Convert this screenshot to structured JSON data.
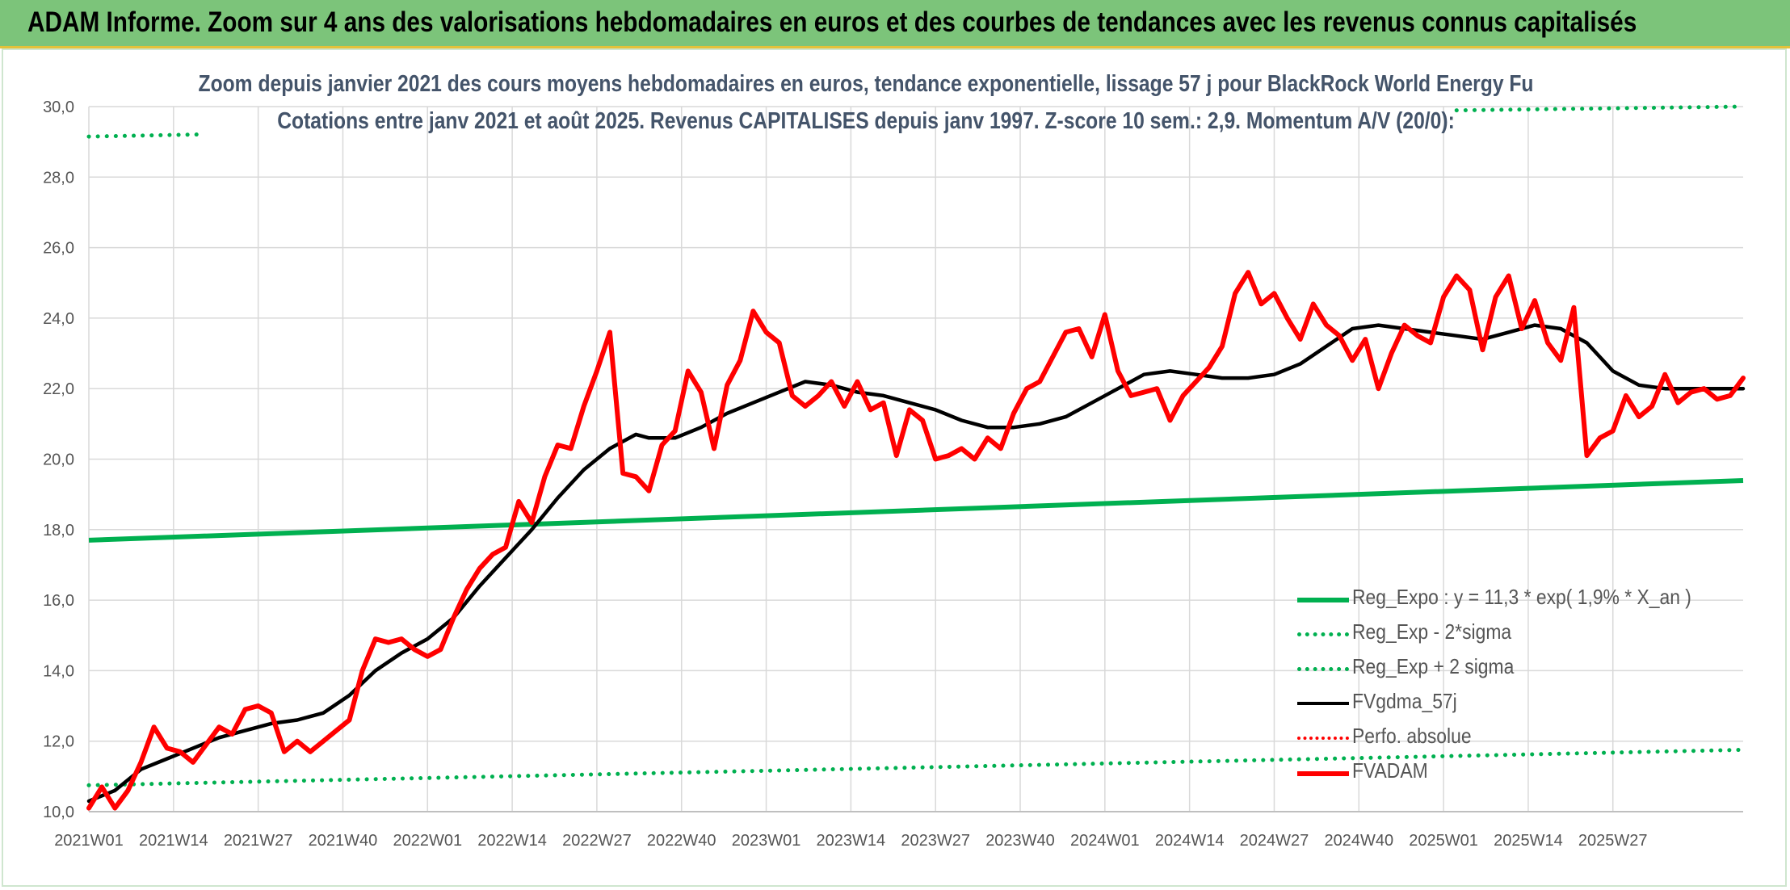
{
  "header": {
    "title": "ADAM Informe. Zoom sur 4 ans des valorisations hebdomadaires en euros et des courbes de tendances avec les revenus connus capitalisés"
  },
  "chart_data": {
    "type": "line",
    "title": "Zoom depuis janvier 2021 des cours moyens hebdomadaires en euros, tendance exponentielle, lissage 57 j pour BlackRock World Energy Fu",
    "subtitle": "Cotations entre janv 2021 et août 2025. Revenus CAPITALISES depuis janv 1997. Z-score 10 sem.: 2,9. Momentum A/V (20/0):",
    "xlabel": "",
    "ylabel": "",
    "ylim": [
      10,
      30
    ],
    "yticks": [
      "10,0",
      "12,0",
      "14,0",
      "16,0",
      "18,0",
      "20,0",
      "22,0",
      "24,0",
      "26,0",
      "28,0",
      "30,0"
    ],
    "xticks": [
      "2021W01",
      "2021W14",
      "2021W27",
      "2021W40",
      "2022W01",
      "2022W14",
      "2022W27",
      "2022W40",
      "2023W01",
      "2023W14",
      "2023W27",
      "2023W40",
      "2024W01",
      "2024W14",
      "2024W27",
      "2024W40",
      "2025W01",
      "2025W14",
      "2025W27"
    ],
    "xrange_weeks": [
      0,
      240
    ],
    "grid": true,
    "legend_position": "bottom-right",
    "series": [
      {
        "name": "Reg_Expo : y = 11,3 * exp( 1,9% *  X_an )",
        "color": "#00b050",
        "style": "solid",
        "points": [
          [
            0,
            17.7
          ],
          [
            240,
            19.3
          ]
        ]
      },
      {
        "name": "Reg_Exp - 2*sigma",
        "color": "#00b050",
        "style": "dotted",
        "points": [
          [
            0,
            10.75
          ],
          [
            240,
            11.7
          ]
        ]
      },
      {
        "name": "Reg_Exp + 2 sigma",
        "color": "#00b050",
        "style": "dotted",
        "points": [
          [
            0,
            29.15
          ],
          [
            240,
            30.0
          ]
        ]
      },
      {
        "name": "FVgdma_57j",
        "color": "#000000",
        "style": "solid",
        "points": [
          [
            0,
            10.3
          ],
          [
            4,
            10.6
          ],
          [
            8,
            11.2
          ],
          [
            12,
            11.5
          ],
          [
            16,
            11.8
          ],
          [
            20,
            12.1
          ],
          [
            24,
            12.3
          ],
          [
            28,
            12.5
          ],
          [
            32,
            12.6
          ],
          [
            36,
            12.8
          ],
          [
            40,
            13.3
          ],
          [
            44,
            14.0
          ],
          [
            48,
            14.5
          ],
          [
            52,
            14.9
          ],
          [
            56,
            15.5
          ],
          [
            60,
            16.4
          ],
          [
            64,
            17.2
          ],
          [
            68,
            18.0
          ],
          [
            72,
            18.9
          ],
          [
            76,
            19.7
          ],
          [
            80,
            20.3
          ],
          [
            84,
            20.7
          ],
          [
            86,
            20.6
          ],
          [
            90,
            20.6
          ],
          [
            94,
            20.9
          ],
          [
            98,
            21.3
          ],
          [
            102,
            21.6
          ],
          [
            106,
            21.9
          ],
          [
            110,
            22.2
          ],
          [
            114,
            22.1
          ],
          [
            118,
            21.9
          ],
          [
            122,
            21.8
          ],
          [
            126,
            21.6
          ],
          [
            130,
            21.4
          ],
          [
            134,
            21.1
          ],
          [
            138,
            20.9
          ],
          [
            142,
            20.9
          ],
          [
            146,
            21.0
          ],
          [
            150,
            21.2
          ],
          [
            154,
            21.6
          ],
          [
            158,
            22.0
          ],
          [
            162,
            22.4
          ],
          [
            166,
            22.5
          ],
          [
            170,
            22.4
          ],
          [
            174,
            22.3
          ],
          [
            178,
            22.3
          ],
          [
            182,
            22.4
          ],
          [
            186,
            22.7
          ],
          [
            190,
            23.2
          ],
          [
            194,
            23.7
          ],
          [
            198,
            23.8
          ],
          [
            202,
            23.7
          ],
          [
            206,
            23.6
          ],
          [
            210,
            23.5
          ],
          [
            214,
            23.4
          ],
          [
            218,
            23.6
          ],
          [
            222,
            23.8
          ],
          [
            226,
            23.7
          ],
          [
            230,
            23.3
          ],
          [
            234,
            22.5
          ],
          [
            238,
            22.1
          ],
          [
            242,
            22.0
          ],
          [
            246,
            22.0
          ],
          [
            250,
            22.0
          ],
          [
            254,
            22.0
          ]
        ]
      },
      {
        "name": "Perfo. absolue",
        "color": "#ff0000",
        "style": "dotted",
        "points": []
      },
      {
        "name": "FVADAM",
        "color": "#ff0000",
        "style": "solid",
        "points": [
          [
            0,
            10.1
          ],
          [
            2,
            10.7
          ],
          [
            4,
            10.1
          ],
          [
            6,
            10.6
          ],
          [
            8,
            11.4
          ],
          [
            10,
            12.4
          ],
          [
            12,
            11.8
          ],
          [
            14,
            11.7
          ],
          [
            16,
            11.4
          ],
          [
            18,
            11.9
          ],
          [
            20,
            12.4
          ],
          [
            22,
            12.2
          ],
          [
            24,
            12.9
          ],
          [
            26,
            13.0
          ],
          [
            28,
            12.8
          ],
          [
            30,
            11.7
          ],
          [
            32,
            12.0
          ],
          [
            34,
            11.7
          ],
          [
            36,
            12.0
          ],
          [
            38,
            12.3
          ],
          [
            40,
            12.6
          ],
          [
            42,
            14.0
          ],
          [
            44,
            14.9
          ],
          [
            46,
            14.8
          ],
          [
            48,
            14.9
          ],
          [
            50,
            14.6
          ],
          [
            52,
            14.4
          ],
          [
            54,
            14.6
          ],
          [
            56,
            15.5
          ],
          [
            58,
            16.3
          ],
          [
            60,
            16.9
          ],
          [
            62,
            17.3
          ],
          [
            64,
            17.5
          ],
          [
            66,
            18.8
          ],
          [
            68,
            18.2
          ],
          [
            70,
            19.5
          ],
          [
            72,
            20.4
          ],
          [
            74,
            20.3
          ],
          [
            76,
            21.5
          ],
          [
            78,
            22.5
          ],
          [
            80,
            23.6
          ],
          [
            82,
            19.6
          ],
          [
            84,
            19.5
          ],
          [
            86,
            19.1
          ],
          [
            88,
            20.4
          ],
          [
            90,
            20.8
          ],
          [
            92,
            22.5
          ],
          [
            94,
            21.9
          ],
          [
            96,
            20.3
          ],
          [
            98,
            22.1
          ],
          [
            100,
            22.8
          ],
          [
            102,
            24.2
          ],
          [
            104,
            23.6
          ],
          [
            106,
            23.3
          ],
          [
            108,
            21.8
          ],
          [
            110,
            21.5
          ],
          [
            112,
            21.8
          ],
          [
            114,
            22.2
          ],
          [
            116,
            21.5
          ],
          [
            118,
            22.2
          ],
          [
            120,
            21.4
          ],
          [
            122,
            21.6
          ],
          [
            124,
            20.1
          ],
          [
            126,
            21.4
          ],
          [
            128,
            21.1
          ],
          [
            130,
            20.0
          ],
          [
            132,
            20.1
          ],
          [
            134,
            20.3
          ],
          [
            136,
            20.0
          ],
          [
            138,
            20.6
          ],
          [
            140,
            20.3
          ],
          [
            142,
            21.3
          ],
          [
            144,
            22.0
          ],
          [
            146,
            22.2
          ],
          [
            148,
            22.9
          ],
          [
            150,
            23.6
          ],
          [
            152,
            23.7
          ],
          [
            154,
            22.9
          ],
          [
            156,
            24.1
          ],
          [
            158,
            22.5
          ],
          [
            160,
            21.8
          ],
          [
            162,
            21.9
          ],
          [
            164,
            22.0
          ],
          [
            166,
            21.1
          ],
          [
            168,
            21.8
          ],
          [
            170,
            22.2
          ],
          [
            172,
            22.6
          ],
          [
            174,
            23.2
          ],
          [
            176,
            24.7
          ],
          [
            178,
            25.3
          ],
          [
            180,
            24.4
          ],
          [
            182,
            24.7
          ],
          [
            184,
            24.0
          ],
          [
            186,
            23.4
          ],
          [
            188,
            24.4
          ],
          [
            190,
            23.8
          ],
          [
            192,
            23.5
          ],
          [
            194,
            22.8
          ],
          [
            196,
            23.4
          ],
          [
            198,
            22.0
          ],
          [
            200,
            23.0
          ],
          [
            202,
            23.8
          ],
          [
            204,
            23.5
          ],
          [
            206,
            23.3
          ],
          [
            208,
            24.6
          ],
          [
            210,
            25.2
          ],
          [
            212,
            24.8
          ],
          [
            214,
            23.1
          ],
          [
            216,
            24.6
          ],
          [
            218,
            25.2
          ],
          [
            220,
            23.7
          ],
          [
            222,
            24.5
          ],
          [
            224,
            23.3
          ],
          [
            226,
            22.8
          ],
          [
            228,
            24.3
          ],
          [
            230,
            20.1
          ],
          [
            232,
            20.6
          ],
          [
            234,
            20.8
          ],
          [
            236,
            21.8
          ],
          [
            238,
            21.2
          ],
          [
            240,
            21.5
          ],
          [
            242,
            22.4
          ],
          [
            244,
            21.6
          ],
          [
            246,
            21.9
          ],
          [
            248,
            22.0
          ],
          [
            250,
            21.7
          ],
          [
            252,
            21.8
          ],
          [
            254,
            22.3
          ]
        ]
      }
    ]
  }
}
